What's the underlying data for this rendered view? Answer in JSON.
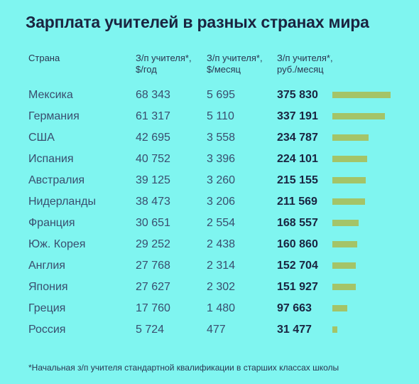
{
  "title": "Зарплата учителей в разных странах мира",
  "headers": {
    "country": "Страна",
    "year_line1": "З/п учителя*,",
    "year_line2": "$/год",
    "month_line1": "З/п учителя*,",
    "month_line2": "$/месяц",
    "rub_line1": "З/п учителя*,",
    "rub_line2": "руб./месяц"
  },
  "rows": [
    {
      "country": "Мексика",
      "year": "68 343",
      "month": "5 695",
      "rub": "375 830"
    },
    {
      "country": "Германия",
      "year": "61 317",
      "month": "5 110",
      "rub": "337 191"
    },
    {
      "country": "США",
      "year": "42 695",
      "month": "3 558",
      "rub": "234 787"
    },
    {
      "country": "Испания",
      "year": "40 752",
      "month": "3 396",
      "rub": "224 101"
    },
    {
      "country": "Австралия",
      "year": "39 125",
      "month": "3 260",
      "rub": "215 155"
    },
    {
      "country": "Нидерланды",
      "year": "38 473",
      "month": "3 206",
      "rub": "211 569"
    },
    {
      "country": "Франция",
      "year": "30 651",
      "month": "2 554",
      "rub": "168 557"
    },
    {
      "country": "Юж. Корея",
      "year": "29 252",
      "month": "2 438",
      "rub": "160 860"
    },
    {
      "country": "Англия",
      "year": "27 768",
      "month": "2 314",
      "rub": "152 704"
    },
    {
      "country": "Япония",
      "year": "27 627",
      "month": "2 302",
      "rub": "151 927"
    },
    {
      "country": "Греция",
      "year": "17 760",
      "month": "1 480",
      "rub": "97 663"
    },
    {
      "country": "Россия",
      "year": "5 724",
      "month": "477",
      "rub": "31 477"
    }
  ],
  "footnote": "*Начальная з/п учителя стандартной квалификации в старших классах школы",
  "chart_data": {
    "type": "bar",
    "title": "Зарплата учителей в разных странах мира",
    "categories": [
      "Мексика",
      "Германия",
      "США",
      "Испания",
      "Австралия",
      "Нидерланды",
      "Франция",
      "Юж. Корея",
      "Англия",
      "Япония",
      "Греция",
      "Россия"
    ],
    "values": [
      375830,
      337191,
      234787,
      224101,
      215155,
      211569,
      168557,
      160860,
      152704,
      151927,
      97663,
      31477
    ],
    "bar_color": "#a4c468",
    "background_color": "#7ff5f0"
  }
}
